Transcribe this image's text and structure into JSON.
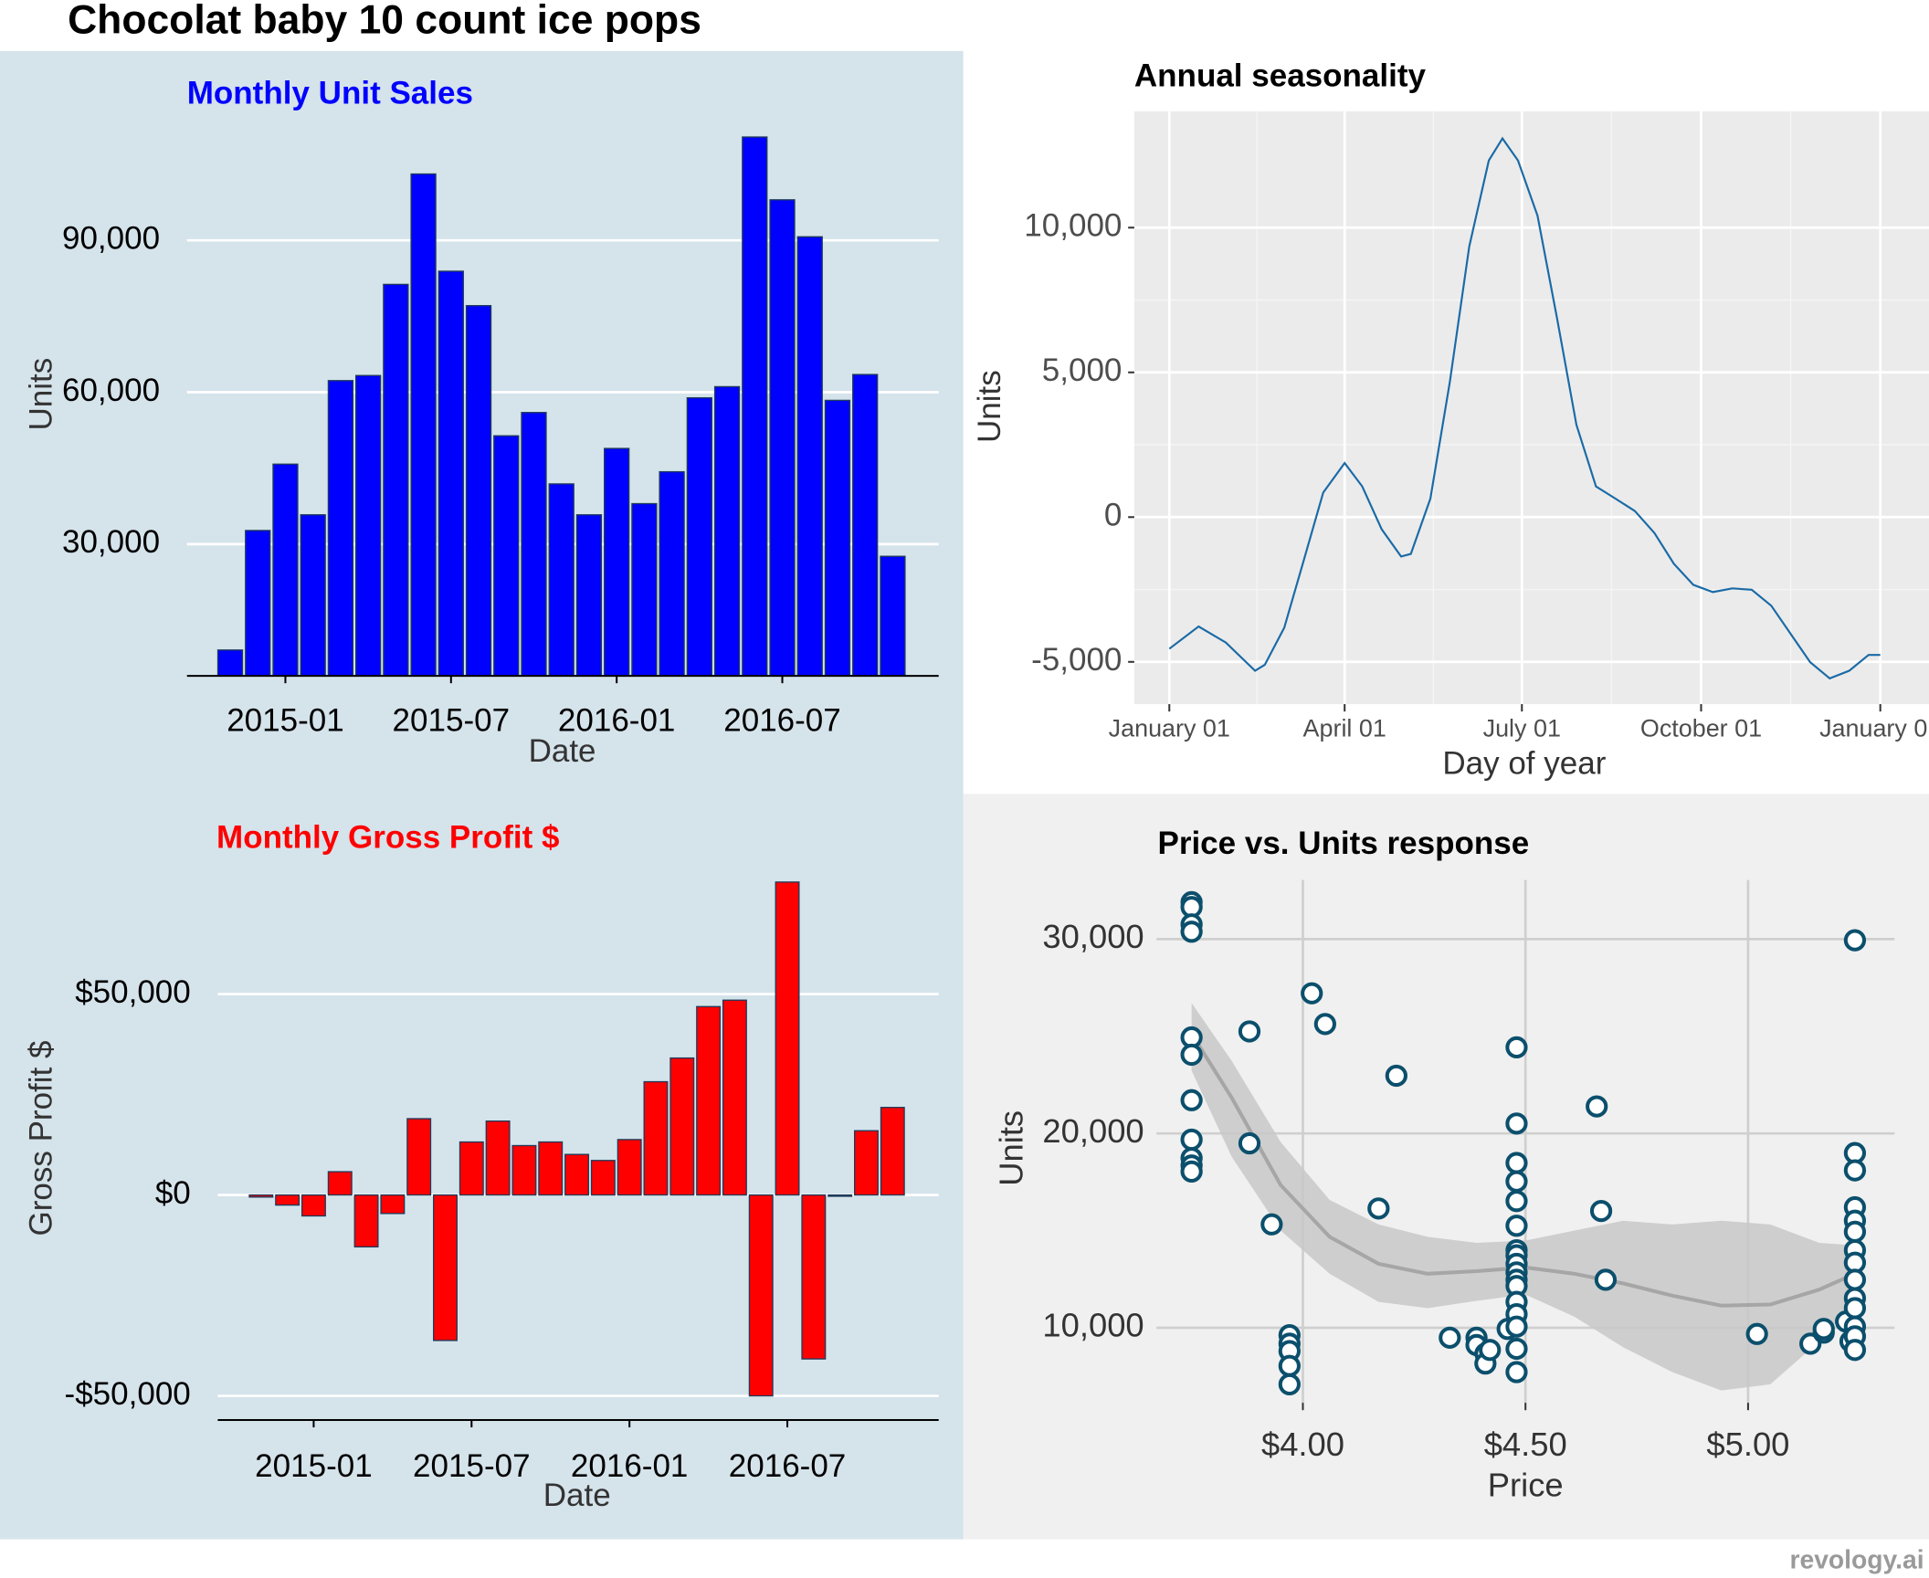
{
  "title": "Chocolat baby 10 count ice pops",
  "watermark": "revology.ai",
  "chart_data": [
    {
      "type": "bar",
      "title": "Monthly Unit Sales",
      "xlabel": "Date",
      "ylabel": "Units",
      "color": "#0000ff",
      "x": [
        "2014-11",
        "2014-12",
        "2015-01",
        "2015-02",
        "2015-03",
        "2015-04",
        "2015-05",
        "2015-06",
        "2015-07",
        "2015-08",
        "2015-09",
        "2015-10",
        "2015-11",
        "2015-12",
        "2016-01",
        "2016-02",
        "2016-03",
        "2016-04",
        "2016-05",
        "2016-06",
        "2016-07",
        "2016-08",
        "2016-09",
        "2016-10",
        "2016-11"
      ],
      "values": [
        9100,
        32700,
        45800,
        35800,
        62300,
        63300,
        81300,
        103100,
        83900,
        77100,
        51400,
        56000,
        41900,
        35800,
        48900,
        38000,
        44300,
        58900,
        61100,
        110400,
        98000,
        90700,
        58400,
        63500,
        27600
      ],
      "xticks": [
        "2015-01",
        "2015-07",
        "2016-01",
        "2016-07"
      ],
      "ylim": [
        4000,
        115000
      ],
      "yticks": [
        {
          "value": 30000,
          "label": "30,000"
        },
        {
          "value": 60000,
          "label": "60,000"
        },
        {
          "value": 90000,
          "label": "90,000"
        }
      ],
      "grid": true
    },
    {
      "type": "bar",
      "title": "Monthly Gross Profit $",
      "xlabel": "Date",
      "ylabel": "Gross Profit $",
      "color": "#ff0000",
      "x": [
        "2014-11",
        "2014-12",
        "2015-01",
        "2015-02",
        "2015-03",
        "2015-04",
        "2015-05",
        "2015-06",
        "2015-07",
        "2015-08",
        "2015-09",
        "2015-10",
        "2015-11",
        "2015-12",
        "2016-01",
        "2016-02",
        "2016-03",
        "2016-04",
        "2016-05",
        "2016-06",
        "2016-07",
        "2016-08",
        "2016-09",
        "2016-10",
        "2016-11"
      ],
      "values": [
        -500,
        -2500,
        -5200,
        5800,
        -12900,
        -4600,
        19000,
        -36200,
        13200,
        18400,
        12300,
        13200,
        10100,
        8600,
        13800,
        28200,
        34100,
        46900,
        48500,
        -50000,
        77900,
        -40800,
        -300,
        16000,
        21800
      ],
      "xticks": [
        "2015-01",
        "2015-07",
        "2016-01",
        "2016-07"
      ],
      "ylim": [
        -56000,
        83000
      ],
      "yticks": [
        {
          "value": -50000,
          "label": "-$50,000"
        },
        {
          "value": 0,
          "label": "$0"
        },
        {
          "value": 50000,
          "label": "$50,000"
        }
      ],
      "grid": true
    },
    {
      "type": "line",
      "title": "Annual seasonality",
      "xlabel": "Day of year",
      "ylabel": "Units",
      "color": "#1a6aa6",
      "x": [
        1,
        16,
        30,
        45,
        50,
        60,
        70,
        80,
        91,
        100,
        110,
        120,
        125,
        135,
        145,
        155,
        165,
        172,
        180,
        190,
        200,
        210,
        220,
        230,
        240,
        250,
        260,
        270,
        280,
        290,
        300,
        310,
        320,
        330,
        340,
        350,
        360,
        366
      ],
      "values": [
        -4550,
        -3780,
        -4330,
        -5310,
        -5100,
        -3820,
        -1490,
        850,
        1870,
        1060,
        -420,
        -1360,
        -1270,
        640,
        4670,
        9350,
        12320,
        13080,
        12320,
        10410,
        6880,
        3190,
        1060,
        640,
        210,
        -550,
        -1610,
        -2340,
        -2590,
        -2460,
        -2510,
        -3060,
        -4040,
        -5010,
        -5570,
        -5310,
        -4760,
        -4760
      ],
      "xlim": [
        -17,
        391
      ],
      "xticks": [
        {
          "value": 1,
          "label": "January 01"
        },
        {
          "value": 91,
          "label": "April 01"
        },
        {
          "value": 182,
          "label": "July 01"
        },
        {
          "value": 274,
          "label": "October 01"
        },
        {
          "value": 366,
          "label": "January 01"
        }
      ],
      "ylim": [
        -6460,
        14020
      ],
      "yticks": [
        {
          "value": -5000,
          "label": "-5,000"
        },
        0,
        {
          "value": 5000,
          "label": "5,000"
        },
        {
          "value": 10000,
          "label": "10,000"
        }
      ],
      "grid": true
    },
    {
      "type": "scatter",
      "title": "Price vs. Units response",
      "xlabel": "Price",
      "ylabel": "Units",
      "color": "#0b4f6c",
      "x": [
        3.75,
        3.75,
        3.75,
        3.75,
        3.75,
        3.75,
        3.75,
        3.75,
        3.75,
        3.75,
        3.75,
        3.88,
        3.88,
        3.93,
        3.97,
        3.97,
        3.97,
        3.97,
        3.97,
        4.02,
        4.05,
        4.17,
        4.21,
        4.33,
        4.39,
        4.39,
        4.41,
        4.41,
        4.42,
        4.46,
        4.48,
        4.48,
        4.48,
        4.48,
        4.48,
        4.48,
        4.48,
        4.48,
        4.48,
        4.48,
        4.48,
        4.48,
        4.48,
        4.48,
        4.48,
        4.48,
        4.48,
        4.66,
        4.67,
        4.68,
        5.02,
        5.14,
        5.17,
        5.17,
        5.22,
        5.23,
        5.24,
        5.24,
        5.24,
        5.24,
        5.24,
        5.24,
        5.24,
        5.24,
        5.24,
        5.24,
        5.24,
        5.24,
        5.24,
        5.24
      ],
      "values": [
        31900,
        31650,
        30760,
        30380,
        24940,
        24050,
        21710,
        19680,
        18730,
        18350,
        18040,
        25250,
        19490,
        15320,
        9620,
        9180,
        8800,
        8040,
        7090,
        27210,
        25630,
        16140,
        22970,
        9490,
        9490,
        9110,
        8670,
        8160,
        8860,
        9940,
        24430,
        20510,
        18480,
        17530,
        16520,
        15250,
        13990,
        13730,
        13290,
        12850,
        12470,
        12150,
        11330,
        10700,
        10060,
        8920,
        7720,
        21390,
        16010,
        12470,
        9680,
        9180,
        9750,
        9940,
        10320,
        9300,
        29940,
        18990,
        18100,
        16200,
        15510,
        14940,
        13990,
        13350,
        12470,
        11520,
        11010,
        10060,
        9560,
        8860
      ],
      "smooth": {
        "color": "#a6a6a6",
        "band_color": "#c8c8c8",
        "x": [
          3.75,
          3.84,
          3.95,
          4.06,
          4.17,
          4.28,
          4.39,
          4.5,
          4.61,
          4.72,
          4.83,
          4.94,
          5.05,
          5.16,
          5.24
        ],
        "y": [
          25130,
          21840,
          17340,
          14680,
          13290,
          12780,
          12910,
          13100,
          12780,
          12280,
          11650,
          11140,
          11200,
          11960,
          12780
        ],
        "upper": [
          26710,
          23730,
          19560,
          16580,
          15320,
          14680,
          14370,
          14490,
          15000,
          15510,
          15320,
          15510,
          15320,
          14370,
          14240
        ],
        "lower": [
          23230,
          18800,
          15000,
          12780,
          11330,
          11010,
          11390,
          11710,
          10570,
          8990,
          7720,
          6770,
          7090,
          9300,
          11330
        ]
      },
      "xlim": [
        3.671,
        5.329
      ],
      "xticks": [
        {
          "value": 4,
          "label": "$4.00"
        },
        {
          "value": 4.5,
          "label": "$4.50"
        },
        {
          "value": 5,
          "label": "$5.00"
        }
      ],
      "ylim": [
        6140,
        33040
      ],
      "yticks": [
        {
          "value": 10000,
          "label": "10,000"
        },
        {
          "value": 20000,
          "label": "20,000"
        },
        {
          "value": 30000,
          "label": "30,000"
        }
      ],
      "grid": true
    }
  ]
}
